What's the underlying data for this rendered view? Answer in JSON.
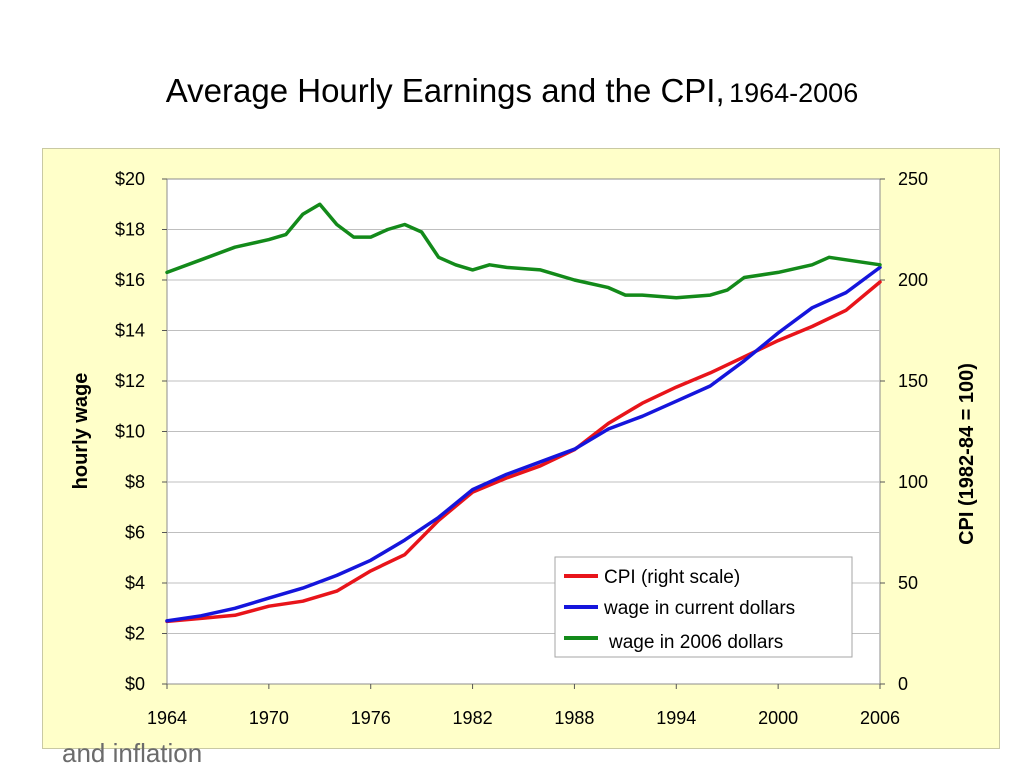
{
  "slide": {
    "title_main": "Average Hourly Earnings and the CPI,",
    "title_years": "1964-2006",
    "subtitle_fragment": "and inflation"
  },
  "chart_data": {
    "type": "line",
    "x_ticks": [
      "1964",
      "1970",
      "1976",
      "1982",
      "1988",
      "1994",
      "2000",
      "2006"
    ],
    "xlim": [
      1964,
      2006
    ],
    "y_left": {
      "label": "hourly wage",
      "ticks": [
        "$0",
        "$2",
        "$4",
        "$6",
        "$8",
        "$10",
        "$12",
        "$14",
        "$16",
        "$18",
        "$20"
      ],
      "range": [
        0,
        20
      ]
    },
    "y_right": {
      "label": "CPI  (1982-84 = 100)",
      "ticks": [
        "0",
        "50",
        "100",
        "150",
        "200",
        "250"
      ],
      "range": [
        0,
        250
      ]
    },
    "grid": true,
    "legend_position": "bottom-right",
    "colors": {
      "cpi": "#e8141a",
      "wage_current": "#1515dc",
      "wage_2006": "#138a1a",
      "grid": "#bfbfbf",
      "plot_bg": "#ffffff",
      "frame_bg": "#ffffc9"
    },
    "series": [
      {
        "name": "CPI  (right scale)",
        "axis": "right",
        "color": "#e8141a",
        "x": [
          1964,
          1966,
          1968,
          1970,
          1972,
          1974,
          1976,
          1978,
          1980,
          1982,
          1984,
          1986,
          1988,
          1990,
          1992,
          1994,
          1996,
          1998,
          2000,
          2002,
          2004,
          2006
        ],
        "y": [
          31,
          32.5,
          34,
          38.5,
          41,
          46,
          56,
          64,
          81,
          95,
          102,
          108,
          116,
          129,
          139,
          147,
          154,
          162,
          170,
          177,
          185,
          199
        ]
      },
      {
        "name": "wage in current dollars",
        "axis": "left",
        "color": "#1515dc",
        "x": [
          1964,
          1966,
          1968,
          1970,
          1972,
          1974,
          1976,
          1978,
          1980,
          1982,
          1984,
          1986,
          1988,
          1990,
          1992,
          1994,
          1996,
          1998,
          2000,
          2002,
          2004,
          2006
        ],
        "y": [
          2.5,
          2.7,
          3.0,
          3.4,
          3.8,
          4.3,
          4.9,
          5.7,
          6.6,
          7.7,
          8.3,
          8.8,
          9.3,
          10.1,
          10.6,
          11.2,
          11.8,
          12.8,
          13.9,
          14.9,
          15.5,
          16.5
        ]
      },
      {
        "name": "wage in 2006 dollars",
        "axis": "left",
        "color": "#138a1a",
        "x": [
          1964,
          1966,
          1968,
          1970,
          1971,
          1972,
          1973,
          1974,
          1975,
          1976,
          1977,
          1978,
          1979,
          1980,
          1981,
          1982,
          1983,
          1984,
          1986,
          1988,
          1990,
          1991,
          1992,
          1994,
          1996,
          1997,
          1998,
          2000,
          2002,
          2003,
          2004,
          2005,
          2006
        ],
        "y": [
          16.3,
          16.8,
          17.3,
          17.6,
          17.8,
          18.6,
          19.0,
          18.2,
          17.7,
          17.7,
          18.0,
          18.2,
          17.9,
          16.9,
          16.6,
          16.4,
          16.6,
          16.5,
          16.4,
          16.0,
          15.7,
          15.4,
          15.4,
          15.3,
          15.4,
          15.6,
          16.1,
          16.3,
          16.6,
          16.9,
          16.8,
          16.7,
          16.6
        ]
      }
    ]
  }
}
